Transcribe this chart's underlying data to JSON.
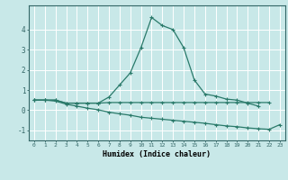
{
  "xlabel": "Humidex (Indice chaleur)",
  "background_color": "#c8e8e8",
  "grid_color": "#ffffff",
  "line_color": "#2a7a6a",
  "xlim": [
    -0.5,
    23.5
  ],
  "ylim": [
    -1.5,
    5.2
  ],
  "x": [
    0,
    1,
    2,
    3,
    4,
    5,
    6,
    7,
    8,
    9,
    10,
    11,
    12,
    13,
    14,
    15,
    16,
    17,
    18,
    19,
    20,
    21,
    22,
    23
  ],
  "series1": [
    0.5,
    0.5,
    0.5,
    0.35,
    0.35,
    0.35,
    0.35,
    0.65,
    1.25,
    1.85,
    3.1,
    4.6,
    4.2,
    4.0,
    3.1,
    1.5,
    0.8,
    0.7,
    0.55,
    0.5,
    0.35,
    0.2,
    null,
    null
  ],
  "series2": [
    0.5,
    0.5,
    0.5,
    0.35,
    0.35,
    0.35,
    0.35,
    0.38,
    0.38,
    0.38,
    0.38,
    0.38,
    0.38,
    0.38,
    0.38,
    0.38,
    0.38,
    0.38,
    0.38,
    0.38,
    0.38,
    0.38,
    0.38,
    null
  ],
  "series3": [
    0.5,
    0.5,
    0.45,
    0.3,
    0.2,
    0.1,
    0.02,
    -0.1,
    -0.18,
    -0.25,
    -0.35,
    -0.4,
    -0.45,
    -0.5,
    -0.55,
    -0.6,
    -0.65,
    -0.72,
    -0.78,
    -0.82,
    -0.88,
    -0.92,
    -0.95,
    -0.72
  ],
  "yticks": [
    -1,
    0,
    1,
    2,
    3,
    4
  ],
  "xticks": [
    0,
    1,
    2,
    3,
    4,
    5,
    6,
    7,
    8,
    9,
    10,
    11,
    12,
    13,
    14,
    15,
    16,
    17,
    18,
    19,
    20,
    21,
    22,
    23
  ]
}
